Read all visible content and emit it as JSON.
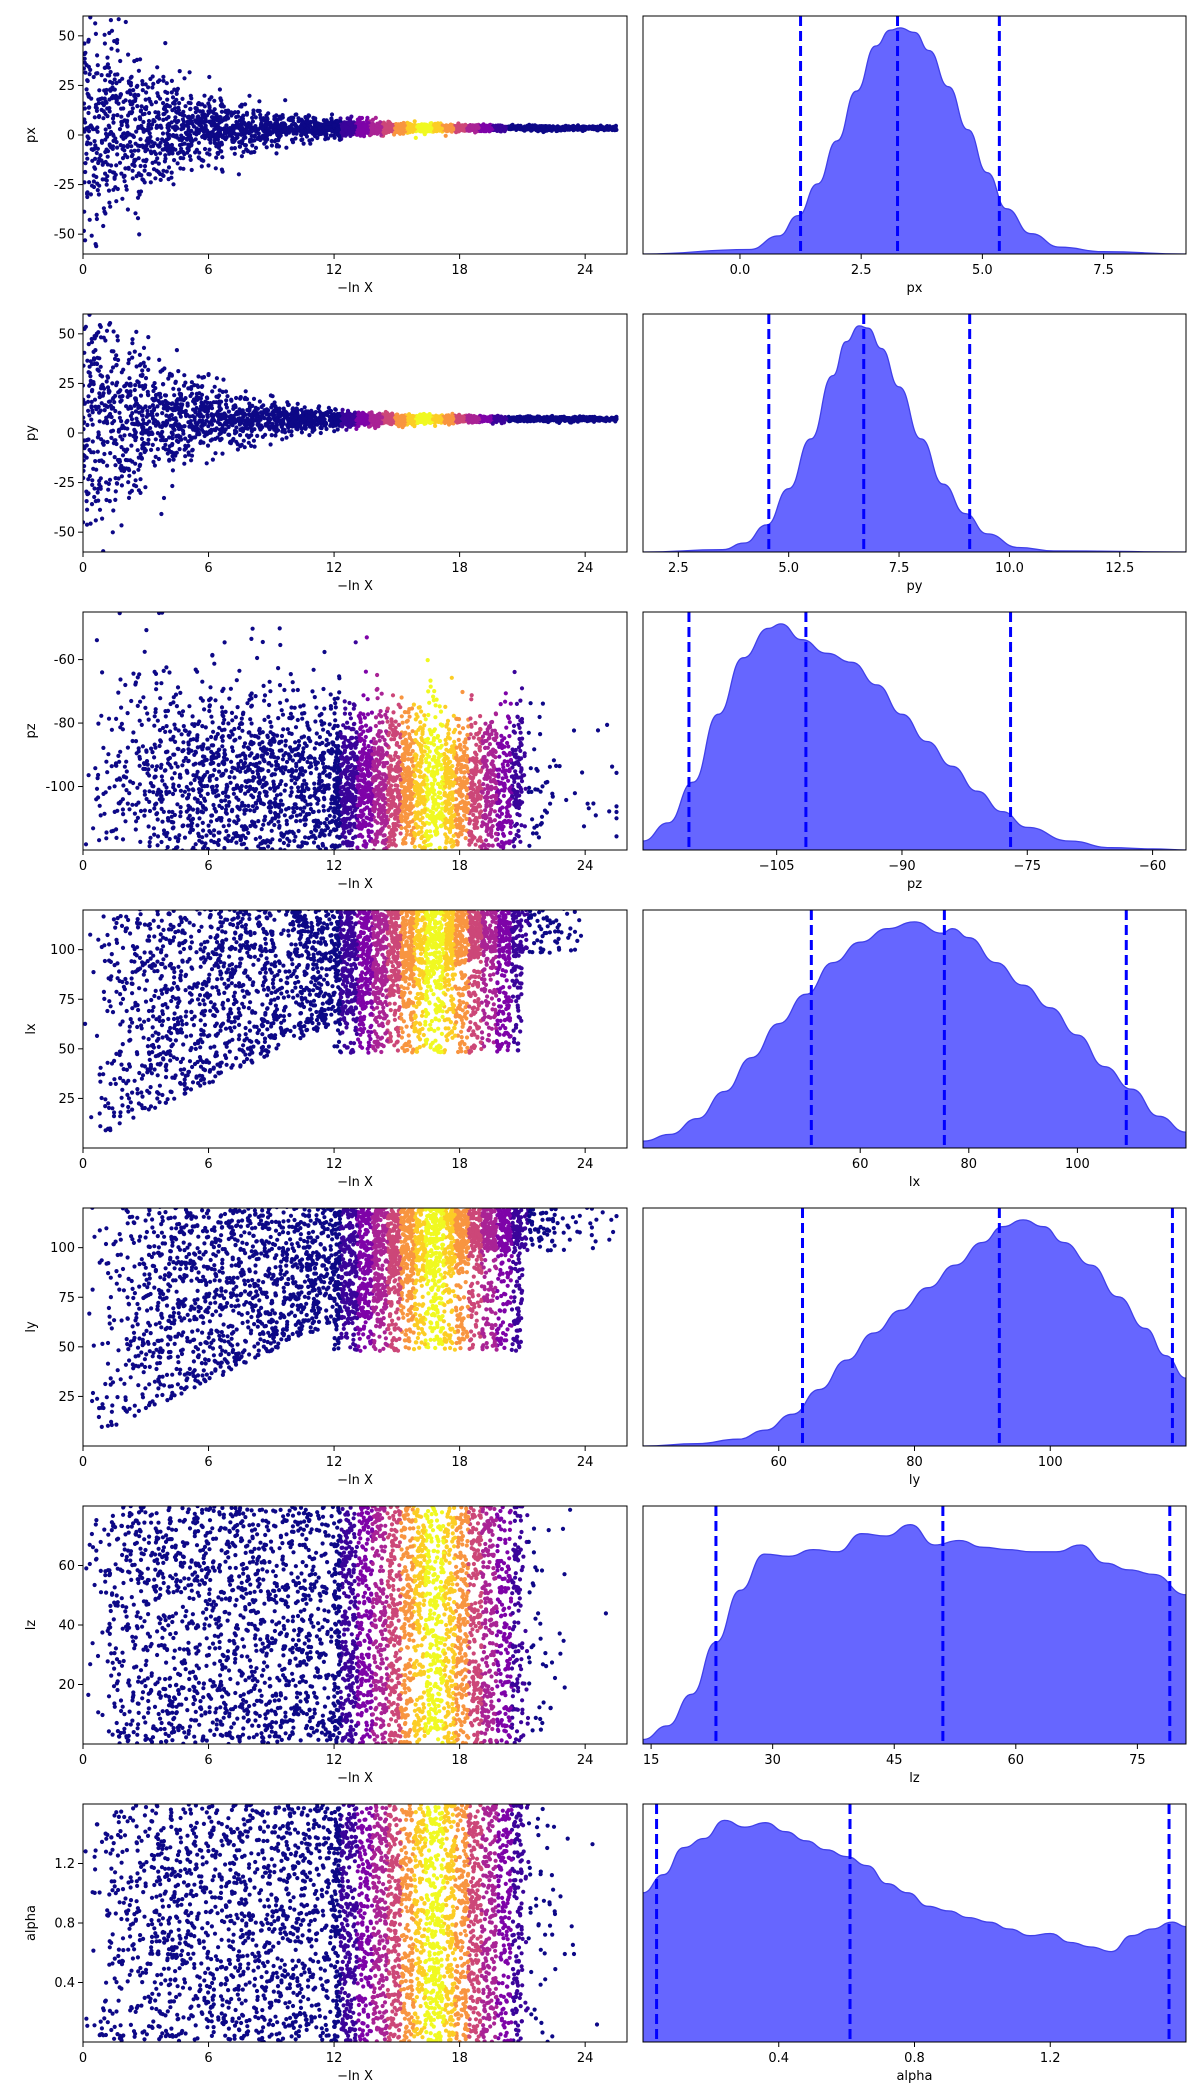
{
  "chart_data": [
    {
      "type": "scatter",
      "xlabel": "−ln X",
      "ylabel": "px",
      "xlim": [
        0,
        26
      ],
      "ylim": [
        -60,
        60
      ],
      "xticks": [
        0,
        6,
        12,
        18,
        24
      ],
      "yticks": [
        50,
        25,
        0,
        -25,
        -50
      ],
      "center": 3.5,
      "shape": "funnel",
      "band_range": [
        12,
        20
      ],
      "colormap": "plasma"
    },
    {
      "type": "area",
      "xlabel": "px",
      "xlim": [
        -2,
        9.2
      ],
      "xticks": [
        0.0,
        2.5,
        5.0,
        7.5
      ],
      "tick_labels": [
        "0.0",
        "2.5",
        "5.0",
        "7.5"
      ],
      "quantiles": [
        1.25,
        3.25,
        5.35
      ],
      "curve_x": [
        -2,
        0.2,
        0.8,
        1.2,
        1.6,
        2.0,
        2.4,
        2.8,
        3.1,
        3.3,
        3.6,
        3.9,
        4.3,
        4.7,
        5.1,
        5.5,
        6.0,
        6.6,
        7.5,
        9.2
      ],
      "curve_y": [
        0,
        0.02,
        0.08,
        0.17,
        0.31,
        0.5,
        0.72,
        0.92,
        0.99,
        1.0,
        0.98,
        0.9,
        0.74,
        0.55,
        0.36,
        0.2,
        0.09,
        0.03,
        0.01,
        0
      ]
    },
    {
      "type": "scatter",
      "xlabel": "−ln X",
      "ylabel": "py",
      "xlim": [
        0,
        26
      ],
      "ylim": [
        -60,
        60
      ],
      "xticks": [
        0,
        6,
        12,
        18,
        24
      ],
      "yticks": [
        50,
        25,
        0,
        -25,
        -50
      ],
      "center": 7,
      "shape": "funnel",
      "band_range": [
        12,
        20
      ],
      "colormap": "plasma"
    },
    {
      "type": "area",
      "xlabel": "py",
      "xlim": [
        1.7,
        14
      ],
      "xticks": [
        2.5,
        5.0,
        7.5,
        10.0,
        12.5
      ],
      "tick_labels": [
        "2.5",
        "5.0",
        "7.5",
        "10.0",
        "12.5"
      ],
      "quantiles": [
        4.55,
        6.7,
        9.1
      ],
      "curve_x": [
        1.7,
        3.5,
        4.0,
        4.5,
        5.0,
        5.5,
        6.0,
        6.3,
        6.6,
        6.8,
        7.1,
        7.5,
        8.0,
        8.5,
        9.0,
        9.5,
        10.2,
        11.0,
        14
      ],
      "curve_y": [
        0,
        0.01,
        0.04,
        0.12,
        0.28,
        0.5,
        0.78,
        0.93,
        1.0,
        0.99,
        0.9,
        0.73,
        0.5,
        0.3,
        0.17,
        0.08,
        0.02,
        0.005,
        0
      ]
    },
    {
      "type": "scatter",
      "xlabel": "−ln X",
      "ylabel": "pz",
      "xlim": [
        0,
        26
      ],
      "ylim": [
        -120,
        -45
      ],
      "xticks": [
        0,
        6,
        12,
        18,
        24
      ],
      "yticks": [
        -60,
        -80,
        -100
      ],
      "center": -100,
      "shape": "cloud",
      "band_range": [
        12,
        21
      ],
      "colormap": "plasma"
    },
    {
      "type": "area",
      "xlabel": "pz",
      "xlim": [
        -121,
        -56
      ],
      "xticks": [
        -105,
        -90,
        -75,
        -60
      ],
      "tick_labels": [
        "−105",
        "−90",
        "−75",
        "−60"
      ],
      "quantiles": [
        -115.5,
        -101.5,
        -77
      ],
      "curve_x": [
        -121,
        -118,
        -115,
        -112,
        -109,
        -106,
        -104.5,
        -102,
        -99,
        -96,
        -93,
        -90,
        -87,
        -84,
        -81,
        -78,
        -75,
        -70,
        -65,
        -60,
        -56
      ],
      "curve_y": [
        0.04,
        0.12,
        0.3,
        0.6,
        0.85,
        0.98,
        1.0,
        0.93,
        0.87,
        0.83,
        0.73,
        0.6,
        0.48,
        0.37,
        0.26,
        0.17,
        0.1,
        0.04,
        0.01,
        0.005,
        0
      ]
    },
    {
      "type": "scatter",
      "xlabel": "−ln X",
      "ylabel": "lx",
      "xlim": [
        0,
        26
      ],
      "ylim": [
        0,
        120
      ],
      "xticks": [
        0,
        6,
        12,
        18,
        24
      ],
      "yticks": [
        100,
        75,
        50,
        25
      ],
      "center": 80,
      "shape": "rising",
      "band_range": [
        12,
        21
      ],
      "colormap": "plasma"
    },
    {
      "type": "area",
      "xlabel": "lx",
      "xlim": [
        20,
        120
      ],
      "xticks": [
        60,
        80,
        100
      ],
      "tick_labels": [
        "60",
        "80",
        "100"
      ],
      "quantiles": [
        51,
        75.5,
        109
      ],
      "curve_x": [
        20,
        25,
        30,
        35,
        40,
        45,
        50,
        55,
        60,
        65,
        70,
        75,
        77,
        80,
        85,
        90,
        95,
        100,
        105,
        110,
        115,
        120
      ],
      "curve_y": [
        0.03,
        0.06,
        0.13,
        0.25,
        0.4,
        0.55,
        0.68,
        0.82,
        0.91,
        0.97,
        1.0,
        0.95,
        0.97,
        0.93,
        0.82,
        0.72,
        0.62,
        0.5,
        0.36,
        0.26,
        0.14,
        0.07
      ]
    },
    {
      "type": "scatter",
      "xlabel": "−ln X",
      "ylabel": "ly",
      "xlim": [
        0,
        26
      ],
      "ylim": [
        0,
        120
      ],
      "xticks": [
        0,
        6,
        12,
        18,
        24
      ],
      "yticks": [
        100,
        75,
        50,
        25
      ],
      "center": 95,
      "shape": "rising",
      "band_range": [
        12,
        21
      ],
      "colormap": "plasma"
    },
    {
      "type": "area",
      "xlabel": "ly",
      "xlim": [
        40,
        120
      ],
      "xticks": [
        60,
        80,
        100
      ],
      "tick_labels": [
        "60",
        "80",
        "100"
      ],
      "quantiles": [
        63.5,
        92.5,
        118
      ],
      "curve_x": [
        40,
        48,
        54,
        58,
        62,
        66,
        70,
        74,
        78,
        82,
        86,
        90,
        93,
        96,
        99,
        102,
        106,
        110,
        114,
        117,
        120
      ],
      "curve_y": [
        0,
        0.01,
        0.03,
        0.07,
        0.14,
        0.25,
        0.38,
        0.5,
        0.6,
        0.7,
        0.8,
        0.9,
        0.97,
        1.0,
        0.97,
        0.9,
        0.8,
        0.66,
        0.52,
        0.4,
        0.3
      ]
    },
    {
      "type": "scatter",
      "xlabel": "−ln X",
      "ylabel": "lz",
      "xlim": [
        0,
        26
      ],
      "ylim": [
        0,
        80
      ],
      "xticks": [
        0,
        6,
        12,
        18,
        24
      ],
      "yticks": [
        60,
        40,
        20
      ],
      "center": 45,
      "shape": "uniform",
      "band_range": [
        12,
        21
      ],
      "colormap": "plasma"
    },
    {
      "type": "area",
      "xlabel": "lz",
      "xlim": [
        14,
        81
      ],
      "xticks": [
        15,
        30,
        45,
        60,
        75
      ],
      "tick_labels": [
        "15",
        "30",
        "45",
        "60",
        "75"
      ],
      "quantiles": [
        23,
        51,
        79
      ],
      "curve_x": [
        14,
        17,
        20,
        23,
        26,
        29,
        32,
        35,
        38,
        41,
        44,
        47,
        50,
        53,
        56,
        59,
        62,
        65,
        68,
        71,
        74,
        77,
        81
      ],
      "curve_y": [
        0.02,
        0.08,
        0.22,
        0.45,
        0.68,
        0.84,
        0.83,
        0.86,
        0.85,
        0.93,
        0.92,
        0.97,
        0.88,
        0.9,
        0.87,
        0.86,
        0.85,
        0.85,
        0.88,
        0.8,
        0.77,
        0.75,
        0.66
      ]
    },
    {
      "type": "scatter",
      "xlabel": "−ln X",
      "ylabel": "alpha",
      "xlim": [
        0,
        26
      ],
      "ylim": [
        0,
        1.6
      ],
      "xticks": [
        0,
        6,
        12,
        18,
        24
      ],
      "yticks": [
        1.2,
        0.8,
        0.4
      ],
      "tick_labels_y": [
        "1.2",
        "0.8",
        "0.4"
      ],
      "center": 0.8,
      "shape": "uniform",
      "band_range": [
        12,
        21
      ],
      "colormap": "plasma"
    },
    {
      "type": "area",
      "xlabel": "alpha",
      "xlim": [
        0,
        1.6
      ],
      "xticks": [
        0.4,
        0.8,
        1.2
      ],
      "tick_labels": [
        "0.4",
        "0.8",
        "1.2"
      ],
      "quantiles": [
        0.04,
        0.61,
        1.55
      ],
      "curve_x": [
        0,
        0.06,
        0.12,
        0.18,
        0.24,
        0.3,
        0.36,
        0.42,
        0.48,
        0.54,
        0.6,
        0.66,
        0.72,
        0.78,
        0.84,
        0.9,
        0.96,
        1.02,
        1.08,
        1.14,
        1.2,
        1.26,
        1.32,
        1.38,
        1.44,
        1.5,
        1.56,
        1.6
      ],
      "curve_y": [
        0.66,
        0.74,
        0.86,
        0.9,
        0.98,
        0.95,
        0.97,
        0.93,
        0.89,
        0.85,
        0.82,
        0.78,
        0.7,
        0.66,
        0.6,
        0.58,
        0.55,
        0.53,
        0.5,
        0.47,
        0.48,
        0.44,
        0.42,
        0.4,
        0.47,
        0.5,
        0.53,
        0.51
      ]
    }
  ],
  "colors": {
    "scatter_low": "#0d0887",
    "scatter_mid": "#7e03a8",
    "scatter_warm": "#cc4778",
    "scatter_orange": "#f89540",
    "scatter_high": "#f0f921",
    "density_fill": "#6666ff",
    "density_edge": "#4040e8",
    "quantile_line": "#0000ff"
  }
}
